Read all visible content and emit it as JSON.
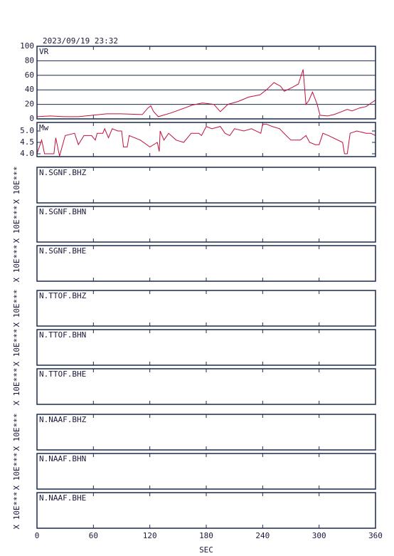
{
  "chart_data": [
    {
      "type": "line",
      "title": "2023/09/19 23:32",
      "xlim": [
        0,
        360
      ],
      "ylim": [
        0,
        100
      ],
      "yticks": [
        0,
        20,
        40,
        60,
        80,
        100
      ],
      "grid": true,
      "x": [
        0,
        14,
        29,
        44,
        59,
        74,
        89,
        112,
        118,
        121,
        124,
        129,
        142,
        157,
        165,
        176,
        188,
        195,
        203,
        214,
        225,
        237,
        244,
        252,
        259,
        263,
        271,
        278,
        283,
        286,
        289,
        293,
        298,
        301,
        309,
        316,
        324,
        330,
        335,
        343,
        350,
        360
      ],
      "series": [
        {
          "name": "VR",
          "color": "#c0103c",
          "values": [
            3,
            4,
            3,
            3,
            5,
            7,
            7,
            6,
            15,
            18,
            10,
            3,
            8,
            15,
            19,
            22,
            20,
            10,
            20,
            24,
            30,
            33,
            40,
            50,
            45,
            38,
            43,
            48,
            68,
            20,
            25,
            37,
            20,
            5,
            4,
            6,
            10,
            13,
            11,
            15,
            17,
            26
          ]
        }
      ]
    },
    {
      "type": "line",
      "xlim": [
        0,
        360
      ],
      "ylim": [
        3.875,
        5.375
      ],
      "yticks": [
        {
          "value": 4,
          "label": "4.0"
        },
        4.5,
        {
          "value": 5,
          "label": "5.0"
        }
      ],
      "grid": false,
      "x": [
        0,
        5,
        8,
        18,
        20,
        24,
        30,
        40,
        44,
        50,
        58,
        62,
        64,
        70,
        72,
        76,
        80,
        86,
        90,
        92,
        96,
        98,
        110,
        120,
        128,
        130,
        131,
        135,
        140,
        148,
        156,
        164,
        172,
        175,
        180,
        186,
        195,
        200,
        205,
        210,
        220,
        228,
        238,
        240,
        244,
        250,
        258,
        265,
        270,
        280,
        286,
        290,
        296,
        300,
        304,
        310,
        325,
        327,
        330,
        333,
        340,
        350,
        355,
        360
      ],
      "series": [
        {
          "name": "Mw",
          "color": "#c0103c",
          "values": [
            4.0,
            4.6,
            4.0,
            4.0,
            4.7,
            3.9,
            4.8,
            4.9,
            4.4,
            4.8,
            4.8,
            4.6,
            4.9,
            4.9,
            5.1,
            4.7,
            5.1,
            5.0,
            5.0,
            4.3,
            4.3,
            4.8,
            4.6,
            4.3,
            4.5,
            4.1,
            5.0,
            4.6,
            4.9,
            4.6,
            4.5,
            4.9,
            4.9,
            4.8,
            5.2,
            5.1,
            5.2,
            4.9,
            4.8,
            5.1,
            5.0,
            5.1,
            4.9,
            5.3,
            5.3,
            5.2,
            5.1,
            4.8,
            4.6,
            4.6,
            4.8,
            4.5,
            4.4,
            4.4,
            4.9,
            4.8,
            4.5,
            4.0,
            4.0,
            4.9,
            5.0,
            4.9,
            4.9,
            4.8
          ]
        }
      ]
    },
    {
      "type": "traces",
      "panels": [
        "N.SGNF.BHZ",
        "N.SGNF.BHN",
        "N.SGNF.BHE",
        "N.TTOF.BHZ",
        "N.TTOF.BHN",
        "N.TTOF.BHE",
        "N.NAAF.BHZ",
        "N.NAAF.BHN",
        "N.NAAF.BHE"
      ],
      "ylabel": "X 10E***",
      "xlabel": "SEC",
      "xlim": [
        0,
        360
      ],
      "xticks": [
        0,
        60,
        120,
        180,
        240,
        300,
        360
      ]
    }
  ]
}
